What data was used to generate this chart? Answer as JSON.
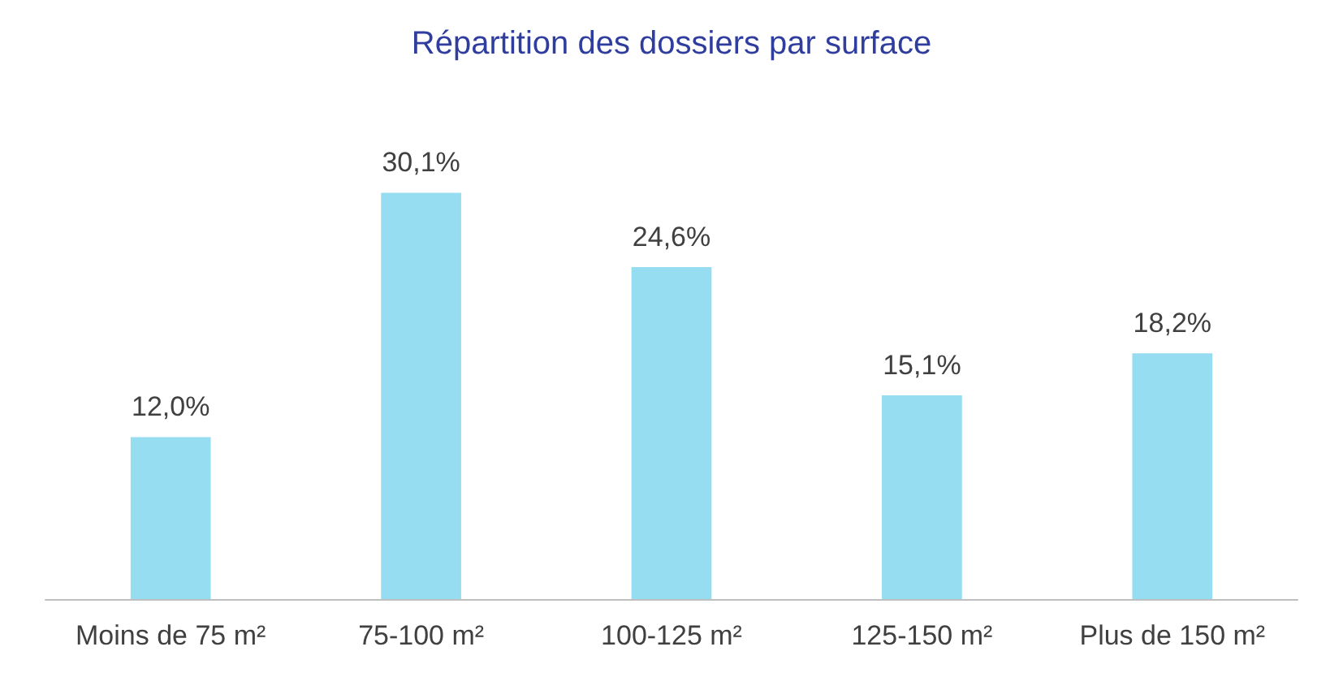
{
  "chart_data": {
    "type": "bar",
    "title": "Répartition des dossiers par surface",
    "categories": [
      "Moins de 75 m²",
      "75-100 m²",
      "100-125 m²",
      "125-150 m²",
      "Plus de 150 m²"
    ],
    "values": [
      12.0,
      30.1,
      24.6,
      15.1,
      18.2
    ],
    "value_labels": [
      "12,0%",
      "30,1%",
      "24,6%",
      "15,1%",
      "18,2%"
    ],
    "color": "#97ddf1"
  }
}
